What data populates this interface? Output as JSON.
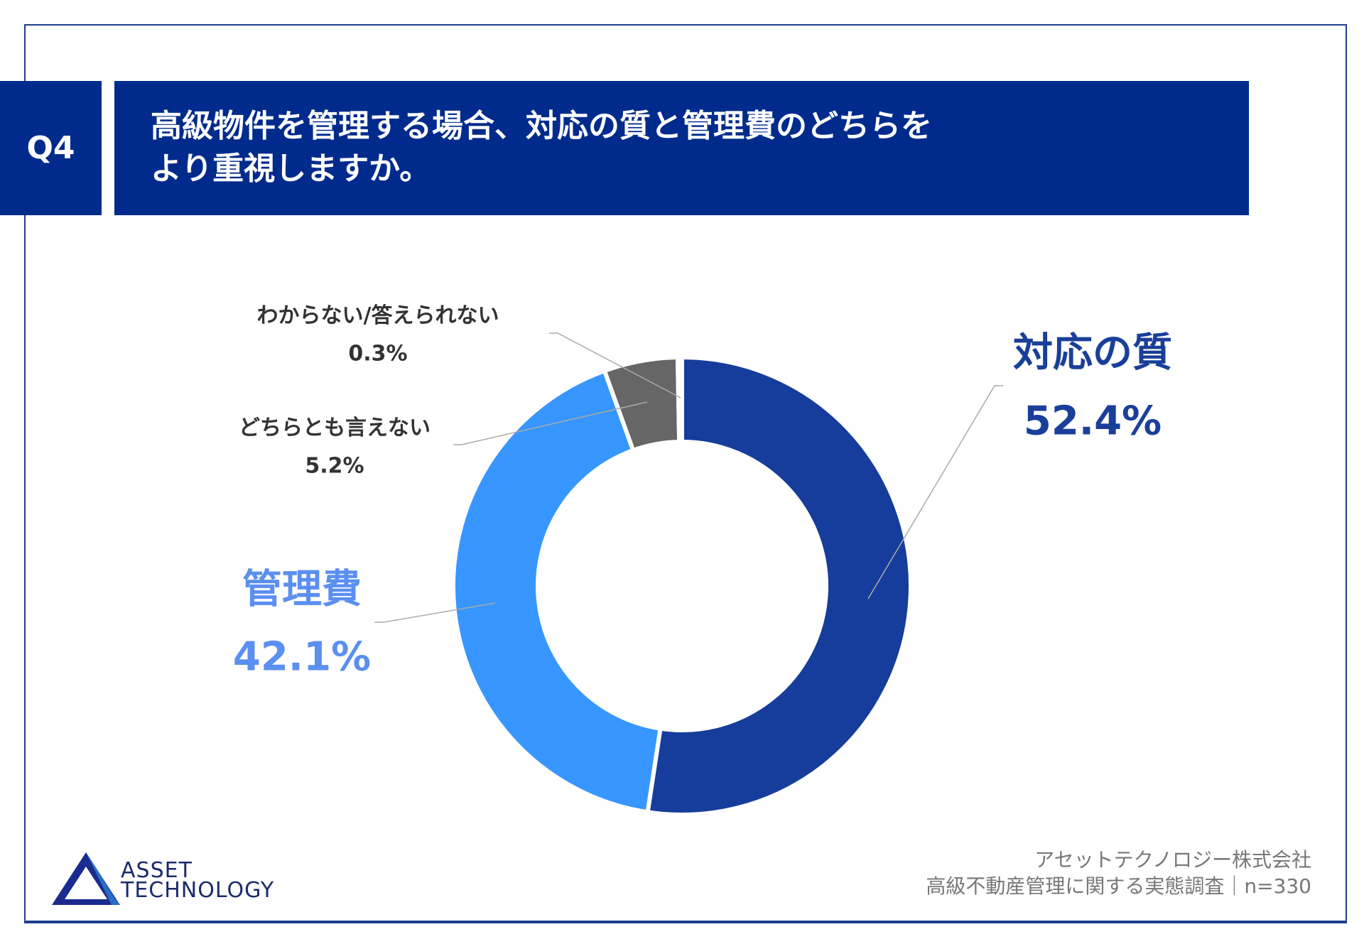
{
  "header": {
    "q_label": "Q4",
    "title_line1": "高級物件を管理する場合、対応の質と管理費のどちらを",
    "title_line2": "より重視しますか。"
  },
  "chart_data": {
    "type": "pie",
    "title": "高級物件を管理する場合、対応の質と管理費のどちらをより重視しますか。",
    "donut": true,
    "slices": [
      {
        "label": "対応の質",
        "value": 52.4,
        "value_label": "52.4%",
        "color": "#163d9b",
        "label_color": "#1a3f9a"
      },
      {
        "label": "管理費",
        "value": 42.1,
        "value_label": "42.1%",
        "color": "#3796ff",
        "label_color": "#5b8ff0"
      },
      {
        "label": "どちらとも言えない",
        "value": 5.2,
        "value_label": "5.2%",
        "color": "#666666",
        "label_color": "#333333"
      },
      {
        "label": "わからない/答えられない",
        "value": 0.3,
        "value_label": "0.3%",
        "color": "#666666",
        "label_color": "#333333"
      }
    ],
    "start": "top",
    "direction": "clockwise"
  },
  "footer": {
    "company": "アセットテクノロジー株式会社",
    "survey": "高級不動産管理に関する実態調査｜n=330"
  },
  "logo": {
    "line1": "ASSET",
    "line2": "TECHNOLOGY"
  }
}
